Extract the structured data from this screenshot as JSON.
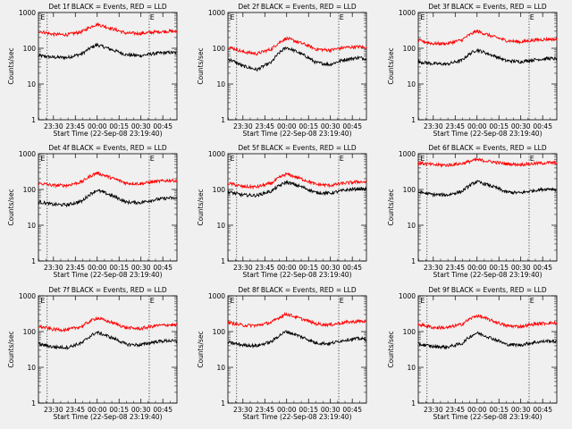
{
  "chart_data": {
    "type": "line",
    "common": {
      "ylabel": "Counts/sec",
      "xlabel": "Start Time (22-Sep-08 23:19:40)",
      "xticks": [
        "23:30",
        "23:45",
        "00:00",
        "00:15",
        "00:30",
        "00:45"
      ],
      "x_tick_minutes": [
        10.3,
        25.3,
        40.3,
        55.3,
        70.3,
        85.3
      ],
      "xlim_minutes": [
        0,
        95
      ],
      "ylim": [
        1,
        1000
      ],
      "yscale": "log",
      "yticks": [
        "1",
        "10",
        "100",
        "1000"
      ],
      "marker_text": "E",
      "marker_minutes": [
        3,
        78
      ],
      "dotted_vlines_minutes": [
        6,
        76
      ]
    },
    "panels": [
      {
        "title": "Det 1f BLACK = Events, RED = LLD",
        "series": [
          {
            "name": "BLACK",
            "color": "#000000",
            "x_minutes": [
              0,
              10,
              20,
              30,
              40,
              50,
              60,
              70,
              80,
              90,
              95
            ],
            "values": [
              62,
              56,
              55,
              70,
              125,
              92,
              66,
              62,
              72,
              76,
              74
            ]
          },
          {
            "name": "RED",
            "color": "#ff0000",
            "x_minutes": [
              0,
              10,
              20,
              30,
              40,
              50,
              60,
              70,
              80,
              90,
              95
            ],
            "values": [
              300,
              245,
              240,
              290,
              470,
              355,
              265,
              260,
              285,
              300,
              290
            ]
          }
        ]
      },
      {
        "title": "Det 2f BLACK = Events, RED = LLD",
        "series": [
          {
            "name": "BLACK",
            "color": "#000000",
            "x_minutes": [
              0,
              10,
              20,
              30,
              40,
              50,
              60,
              70,
              80,
              90,
              95
            ],
            "values": [
              50,
              32,
              25,
              40,
              105,
              70,
              40,
              35,
              48,
              55,
              50
            ]
          },
          {
            "name": "RED",
            "color": "#ff0000",
            "x_minutes": [
              0,
              10,
              20,
              30,
              40,
              50,
              60,
              70,
              80,
              90,
              95
            ],
            "values": [
              110,
              80,
              70,
              95,
              190,
              140,
              95,
              88,
              105,
              110,
              105
            ]
          }
        ]
      },
      {
        "title": "Det 3f BLACK = Events, RED = LLD",
        "series": [
          {
            "name": "BLACK",
            "color": "#000000",
            "x_minutes": [
              0,
              10,
              20,
              30,
              40,
              50,
              60,
              70,
              80,
              90,
              95
            ],
            "values": [
              42,
              37,
              36,
              46,
              90,
              65,
              45,
              42,
              48,
              52,
              50
            ]
          },
          {
            "name": "RED",
            "color": "#ff0000",
            "x_minutes": [
              0,
              10,
              20,
              30,
              40,
              50,
              60,
              70,
              80,
              90,
              95
            ],
            "values": [
              165,
              135,
              135,
              170,
              300,
              220,
              165,
              150,
              170,
              180,
              175
            ]
          }
        ]
      },
      {
        "title": "Det 4f BLACK = Events, RED = LLD",
        "series": [
          {
            "name": "BLACK",
            "color": "#000000",
            "x_minutes": [
              0,
              10,
              20,
              30,
              40,
              50,
              60,
              70,
              80,
              90,
              95
            ],
            "values": [
              45,
              38,
              37,
              47,
              95,
              68,
              44,
              43,
              52,
              58,
              55
            ]
          },
          {
            "name": "RED",
            "color": "#ff0000",
            "x_minutes": [
              0,
              10,
              20,
              30,
              40,
              50,
              60,
              70,
              80,
              90,
              95
            ],
            "values": [
              150,
              130,
              130,
              165,
              290,
              210,
              150,
              145,
              165,
              180,
              175
            ]
          }
        ]
      },
      {
        "title": "Det 5f BLACK = Events, RED = LLD",
        "series": [
          {
            "name": "BLACK",
            "color": "#000000",
            "x_minutes": [
              0,
              10,
              20,
              30,
              40,
              50,
              60,
              70,
              80,
              90,
              95
            ],
            "values": [
              85,
              70,
              68,
              90,
              160,
              120,
              82,
              78,
              95,
              105,
              100
            ]
          },
          {
            "name": "RED",
            "color": "#ff0000",
            "x_minutes": [
              0,
              10,
              20,
              30,
              40,
              50,
              60,
              70,
              80,
              90,
              95
            ],
            "values": [
              150,
              120,
              118,
              150,
              270,
              200,
              140,
              130,
              150,
              165,
              160
            ]
          }
        ]
      },
      {
        "title": "Det 6f BLACK = Events, RED = LLD",
        "series": [
          {
            "name": "BLACK",
            "color": "#000000",
            "x_minutes": [
              0,
              10,
              20,
              30,
              40,
              50,
              60,
              70,
              80,
              90,
              95
            ],
            "values": [
              85,
              72,
              70,
              88,
              165,
              125,
              85,
              80,
              95,
              105,
              100
            ]
          },
          {
            "name": "RED",
            "color": "#ff0000",
            "x_minutes": [
              0,
              10,
              20,
              30,
              40,
              50,
              60,
              70,
              80,
              90,
              95
            ],
            "values": [
              560,
              490,
              480,
              530,
              680,
              600,
              520,
              500,
              530,
              560,
              550
            ]
          }
        ]
      },
      {
        "title": "Det 7f BLACK = Events, RED = LLD",
        "series": [
          {
            "name": "BLACK",
            "color": "#000000",
            "x_minutes": [
              0,
              10,
              20,
              30,
              40,
              50,
              60,
              70,
              80,
              90,
              95
            ],
            "values": [
              45,
              37,
              36,
              48,
              95,
              68,
              44,
              42,
              52,
              56,
              52
            ]
          },
          {
            "name": "RED",
            "color": "#ff0000",
            "x_minutes": [
              0,
              10,
              20,
              30,
              40,
              50,
              60,
              70,
              80,
              90,
              95
            ],
            "values": [
              140,
              115,
              112,
              140,
              240,
              180,
              128,
              120,
              145,
              155,
              150
            ]
          }
        ]
      },
      {
        "title": "Det 8f BLACK = Events, RED = LLD",
        "series": [
          {
            "name": "BLACK",
            "color": "#000000",
            "x_minutes": [
              0,
              10,
              20,
              30,
              40,
              50,
              60,
              70,
              80,
              90,
              95
            ],
            "values": [
              50,
              42,
              40,
              52,
              100,
              72,
              48,
              46,
              58,
              64,
              60
            ]
          },
          {
            "name": "RED",
            "color": "#ff0000",
            "x_minutes": [
              0,
              10,
              20,
              30,
              40,
              50,
              60,
              70,
              80,
              90,
              95
            ],
            "values": [
              180,
              150,
              148,
              180,
              310,
              230,
              165,
              155,
              180,
              195,
              190
            ]
          }
        ]
      },
      {
        "title": "Det 9f BLACK = Events, RED = LLD",
        "series": [
          {
            "name": "BLACK",
            "color": "#000000",
            "x_minutes": [
              0,
              10,
              20,
              30,
              40,
              50,
              60,
              70,
              80,
              90,
              95
            ],
            "values": [
              45,
              38,
              37,
              46,
              92,
              66,
              44,
              42,
              50,
              55,
              52
            ]
          },
          {
            "name": "RED",
            "color": "#ff0000",
            "x_minutes": [
              0,
              10,
              20,
              30,
              40,
              50,
              60,
              70,
              80,
              90,
              95
            ],
            "values": [
              160,
              130,
              128,
              160,
              280,
              205,
              145,
              138,
              162,
              175,
              170
            ]
          }
        ]
      }
    ]
  }
}
